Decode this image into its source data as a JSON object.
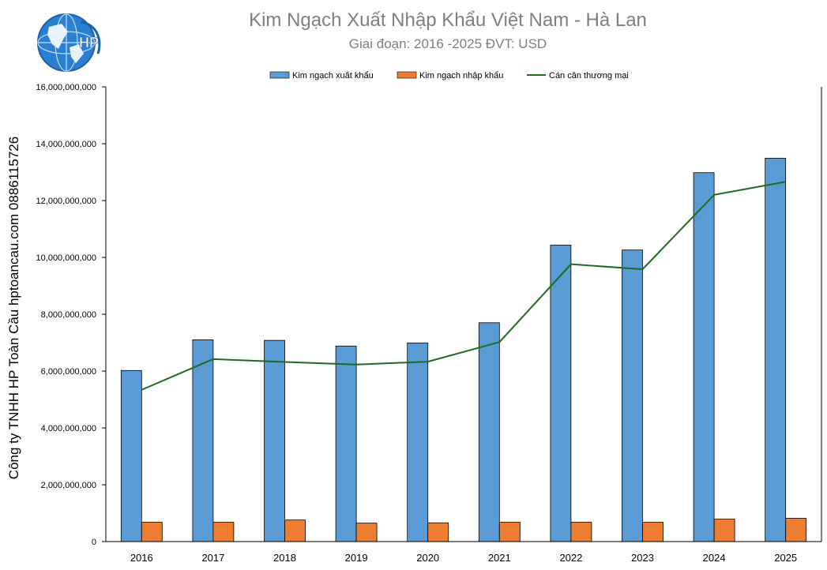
{
  "header": {
    "title": "Kim Ngạch Xuất Nhập Khẩu Việt Nam - Hà Lan",
    "subtitle": "Giai đoạn: 2016 -2025  ĐVT: USD"
  },
  "watermark": {
    "side_text": "Công ty TNHH HP Toàn Cầu hptoancau.com 0886115726",
    "logo_text": "HP",
    "logo_icon": "globe-icon"
  },
  "colors": {
    "export": "#5b9bd5",
    "import": "#ed7d31",
    "balance": "#1e6b1e",
    "title": "#7f7f7f"
  },
  "chart_data": {
    "type": "bar",
    "categories": [
      "2016",
      "2017",
      "2018",
      "2019",
      "2020",
      "2021",
      "2022",
      "2023",
      "2024",
      "2025"
    ],
    "series": [
      {
        "name": "Kim ngạch xuất khẩu",
        "type": "bar",
        "values": [
          6020000000,
          7100000000,
          7080000000,
          6880000000,
          6990000000,
          7700000000,
          10430000000,
          10260000000,
          12980000000,
          13490000000
        ]
      },
      {
        "name": "Kim ngạch nhập khẩu",
        "type": "bar",
        "values": [
          680000000,
          680000000,
          760000000,
          650000000,
          660000000,
          680000000,
          680000000,
          680000000,
          790000000,
          820000000
        ]
      },
      {
        "name": "Cán cân thương mại",
        "type": "line",
        "values": [
          5340000000,
          6420000000,
          6320000000,
          6230000000,
          6330000000,
          7020000000,
          9760000000,
          9580000000,
          12200000000,
          12660000000
        ]
      }
    ],
    "ylim": [
      0,
      16000000000
    ],
    "yticks": [
      "0",
      "2,000,000,000",
      "4,000,000,000",
      "6,000,000,000",
      "8,000,000,000",
      "10,000,000,000",
      "12,000,000,000",
      "14,000,000,000",
      "16,000,000,000"
    ],
    "ytick_values": [
      0,
      2000000000,
      4000000000,
      6000000000,
      8000000000,
      10000000000,
      12000000000,
      14000000000,
      16000000000
    ],
    "legend": "top-center",
    "grid": false
  }
}
